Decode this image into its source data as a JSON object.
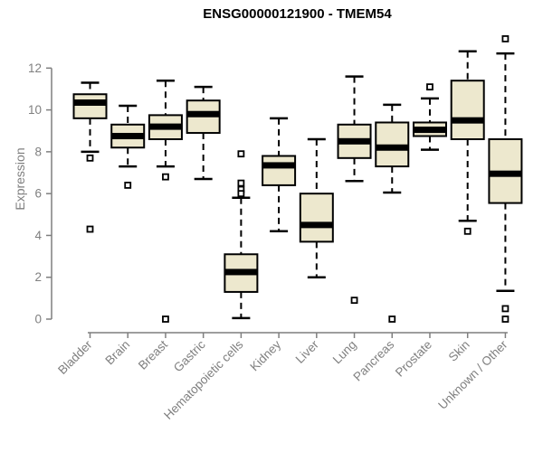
{
  "chart_data": {
    "type": "boxplot",
    "title": "ENSG00000121900 - TMEM54",
    "ylabel": "Expression",
    "xlabel": "",
    "ylim": [
      0,
      12
    ],
    "yticks": [
      0,
      2,
      4,
      6,
      8,
      10,
      12
    ],
    "grid": false,
    "legend": null,
    "x_tick_rotation_degrees": 45,
    "categories": [
      "Bladder",
      "Brain",
      "Breast",
      "Gastric",
      "Hematopoietic cells",
      "Kidney",
      "Liver",
      "Lung",
      "Pancreas",
      "Prostate",
      "Skin",
      "Unknown / Other"
    ],
    "boxes": [
      {
        "category": "Bladder",
        "whisker_low": 8.0,
        "q1": 9.6,
        "median": 10.35,
        "q3": 10.75,
        "whisker_high": 11.3,
        "outliers": [
          7.7,
          4.3
        ]
      },
      {
        "category": "Brain",
        "whisker_low": 7.3,
        "q1": 8.2,
        "median": 8.75,
        "q3": 9.3,
        "whisker_high": 10.2,
        "outliers": [
          6.4
        ]
      },
      {
        "category": "Breast",
        "whisker_low": 7.3,
        "q1": 8.6,
        "median": 9.2,
        "q3": 9.75,
        "whisker_high": 11.4,
        "outliers": [
          6.8,
          0.0
        ]
      },
      {
        "category": "Gastric",
        "whisker_low": 6.7,
        "q1": 8.9,
        "median": 9.8,
        "q3": 10.45,
        "whisker_high": 11.1,
        "outliers": []
      },
      {
        "category": "Hematopoietic cells",
        "whisker_low": 0.05,
        "q1": 1.3,
        "median": 2.25,
        "q3": 3.1,
        "whisker_high": 5.8,
        "outliers": [
          7.9,
          6.5,
          6.2,
          6.0
        ]
      },
      {
        "category": "Kidney",
        "whisker_low": 4.2,
        "q1": 6.4,
        "median": 7.35,
        "q3": 7.8,
        "whisker_high": 9.6,
        "outliers": []
      },
      {
        "category": "Liver",
        "whisker_low": 2.0,
        "q1": 3.7,
        "median": 4.5,
        "q3": 6.0,
        "whisker_high": 8.6,
        "outliers": []
      },
      {
        "category": "Lung",
        "whisker_low": 6.6,
        "q1": 7.7,
        "median": 8.5,
        "q3": 9.3,
        "whisker_high": 11.6,
        "outliers": [
          0.9
        ]
      },
      {
        "category": "Pancreas",
        "whisker_low": 6.05,
        "q1": 7.3,
        "median": 8.2,
        "q3": 9.4,
        "whisker_high": 10.25,
        "outliers": [
          0.0
        ]
      },
      {
        "category": "Prostate",
        "whisker_low": 8.1,
        "q1": 8.75,
        "median": 9.05,
        "q3": 9.4,
        "whisker_high": 10.55,
        "outliers": [
          11.1
        ]
      },
      {
        "category": "Skin",
        "whisker_low": 4.7,
        "q1": 8.6,
        "median": 9.5,
        "q3": 11.4,
        "whisker_high": 12.8,
        "outliers": [
          4.2
        ]
      },
      {
        "category": "Unknown / Other",
        "whisker_low": 1.35,
        "q1": 5.55,
        "median": 6.95,
        "q3": 8.6,
        "whisker_high": 12.7,
        "outliers": [
          13.4,
          0.5,
          0.0
        ]
      }
    ],
    "colors": {
      "background": "#ffffff",
      "box_fill": "#ede8ce",
      "box_border": "#000000",
      "median": "#000000",
      "whisker": "#000000",
      "outlier_border": "#000000",
      "outlier_fill": "#ffffff",
      "axis": "#7f7f7f",
      "title": "#000000"
    }
  }
}
